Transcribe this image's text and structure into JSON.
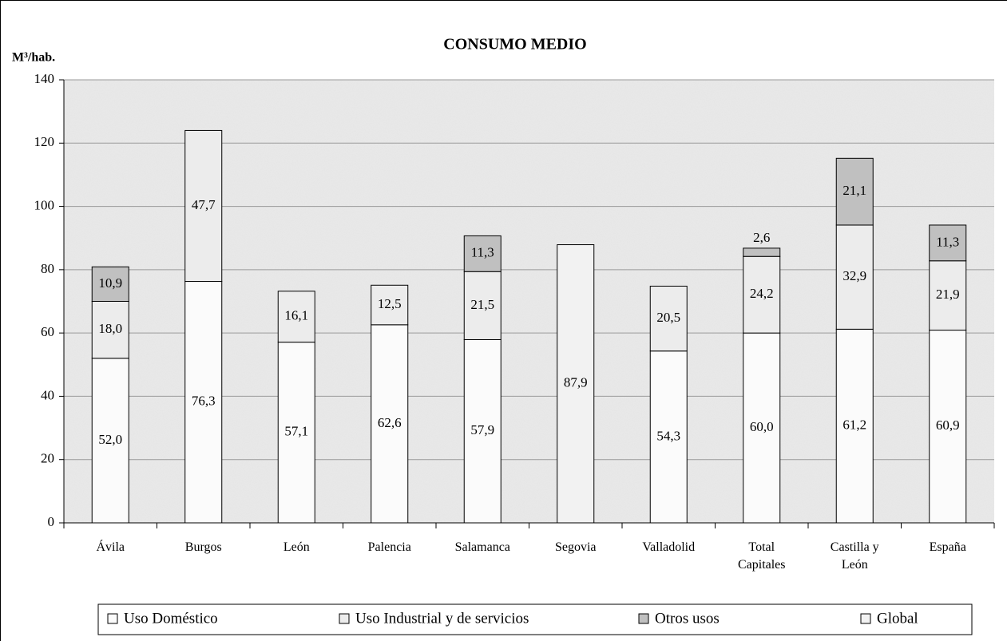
{
  "chart_data": {
    "type": "stacked_bar",
    "title": "CONSUMO MEDIO",
    "y_axis_label": "M³/hab.",
    "categories": [
      "Ávila",
      "Burgos",
      "León",
      "Palencia",
      "Salamanca",
      "Segovia",
      "Valladolid",
      "Total Capitales",
      "Castilla y León",
      "España"
    ],
    "series": [
      {
        "name": "Uso Doméstico",
        "color": "#fbfbfb",
        "values": [
          52.0,
          76.3,
          57.1,
          62.6,
          57.9,
          null,
          54.3,
          60.0,
          61.2,
          60.9
        ],
        "value_labels": [
          "52,0",
          "76,3",
          "57,1",
          "62,6",
          "57,9",
          null,
          "54,3",
          "60,0",
          "61,2",
          "60,9"
        ]
      },
      {
        "name": "Uso Industrial y de servicios",
        "color": "#ececec",
        "values": [
          18.0,
          47.7,
          16.1,
          12.5,
          21.5,
          null,
          20.5,
          24.2,
          32.9,
          21.9
        ],
        "value_labels": [
          "18,0",
          "47,7",
          "16,1",
          "12,5",
          "21,5",
          null,
          "20,5",
          "24,2",
          "32,9",
          "21,9"
        ]
      },
      {
        "name": "Otros usos",
        "color": "#c0c0c0",
        "values": [
          10.9,
          null,
          null,
          null,
          11.3,
          null,
          null,
          2.6,
          21.1,
          11.3
        ],
        "value_labels": [
          "10,9",
          null,
          null,
          null,
          "11,3",
          null,
          null,
          "2,6",
          "21,1",
          "11,3"
        ]
      },
      {
        "name": "Global",
        "color": "#f2f2f2",
        "values": [
          null,
          null,
          null,
          null,
          null,
          87.9,
          null,
          null,
          null,
          null
        ],
        "value_labels": [
          null,
          null,
          null,
          null,
          null,
          "87,9",
          null,
          null,
          null,
          null
        ]
      }
    ],
    "ylim": [
      0,
      140
    ],
    "yticks": [
      0,
      20,
      40,
      60,
      80,
      100,
      120,
      140
    ],
    "grid": true,
    "legend": "bottom"
  }
}
